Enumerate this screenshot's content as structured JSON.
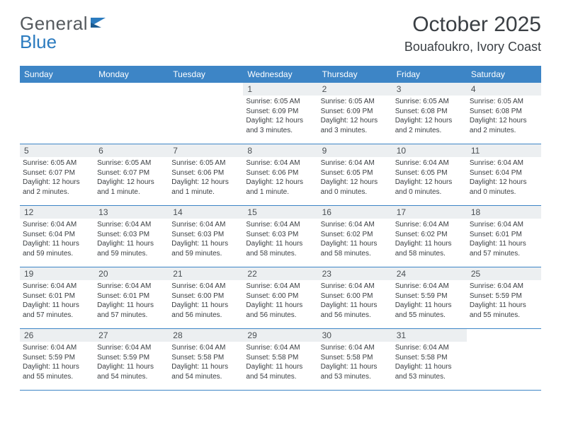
{
  "brand": {
    "word1": "General",
    "word2": "Blue"
  },
  "title": "October 2025",
  "location": "Bouafoukro, Ivory Coast",
  "colors": {
    "header_bg": "#3d85c6",
    "header_fg": "#ffffff",
    "daynum_bg": "#eceff1",
    "rule": "#3d85c6",
    "text": "#3a3e42",
    "brand_gray": "#555a5e",
    "brand_blue": "#2b7bbf"
  },
  "day_labels": [
    "Sunday",
    "Monday",
    "Tuesday",
    "Wednesday",
    "Thursday",
    "Friday",
    "Saturday"
  ],
  "weeks": [
    [
      {
        "n": "",
        "sr": "",
        "ss": "",
        "dl": ""
      },
      {
        "n": "",
        "sr": "",
        "ss": "",
        "dl": ""
      },
      {
        "n": "",
        "sr": "",
        "ss": "",
        "dl": ""
      },
      {
        "n": "1",
        "sr": "Sunrise: 6:05 AM",
        "ss": "Sunset: 6:09 PM",
        "dl": "Daylight: 12 hours and 3 minutes."
      },
      {
        "n": "2",
        "sr": "Sunrise: 6:05 AM",
        "ss": "Sunset: 6:09 PM",
        "dl": "Daylight: 12 hours and 3 minutes."
      },
      {
        "n": "3",
        "sr": "Sunrise: 6:05 AM",
        "ss": "Sunset: 6:08 PM",
        "dl": "Daylight: 12 hours and 2 minutes."
      },
      {
        "n": "4",
        "sr": "Sunrise: 6:05 AM",
        "ss": "Sunset: 6:08 PM",
        "dl": "Daylight: 12 hours and 2 minutes."
      }
    ],
    [
      {
        "n": "5",
        "sr": "Sunrise: 6:05 AM",
        "ss": "Sunset: 6:07 PM",
        "dl": "Daylight: 12 hours and 2 minutes."
      },
      {
        "n": "6",
        "sr": "Sunrise: 6:05 AM",
        "ss": "Sunset: 6:07 PM",
        "dl": "Daylight: 12 hours and 1 minute."
      },
      {
        "n": "7",
        "sr": "Sunrise: 6:05 AM",
        "ss": "Sunset: 6:06 PM",
        "dl": "Daylight: 12 hours and 1 minute."
      },
      {
        "n": "8",
        "sr": "Sunrise: 6:04 AM",
        "ss": "Sunset: 6:06 PM",
        "dl": "Daylight: 12 hours and 1 minute."
      },
      {
        "n": "9",
        "sr": "Sunrise: 6:04 AM",
        "ss": "Sunset: 6:05 PM",
        "dl": "Daylight: 12 hours and 0 minutes."
      },
      {
        "n": "10",
        "sr": "Sunrise: 6:04 AM",
        "ss": "Sunset: 6:05 PM",
        "dl": "Daylight: 12 hours and 0 minutes."
      },
      {
        "n": "11",
        "sr": "Sunrise: 6:04 AM",
        "ss": "Sunset: 6:04 PM",
        "dl": "Daylight: 12 hours and 0 minutes."
      }
    ],
    [
      {
        "n": "12",
        "sr": "Sunrise: 6:04 AM",
        "ss": "Sunset: 6:04 PM",
        "dl": "Daylight: 11 hours and 59 minutes."
      },
      {
        "n": "13",
        "sr": "Sunrise: 6:04 AM",
        "ss": "Sunset: 6:03 PM",
        "dl": "Daylight: 11 hours and 59 minutes."
      },
      {
        "n": "14",
        "sr": "Sunrise: 6:04 AM",
        "ss": "Sunset: 6:03 PM",
        "dl": "Daylight: 11 hours and 59 minutes."
      },
      {
        "n": "15",
        "sr": "Sunrise: 6:04 AM",
        "ss": "Sunset: 6:03 PM",
        "dl": "Daylight: 11 hours and 58 minutes."
      },
      {
        "n": "16",
        "sr": "Sunrise: 6:04 AM",
        "ss": "Sunset: 6:02 PM",
        "dl": "Daylight: 11 hours and 58 minutes."
      },
      {
        "n": "17",
        "sr": "Sunrise: 6:04 AM",
        "ss": "Sunset: 6:02 PM",
        "dl": "Daylight: 11 hours and 58 minutes."
      },
      {
        "n": "18",
        "sr": "Sunrise: 6:04 AM",
        "ss": "Sunset: 6:01 PM",
        "dl": "Daylight: 11 hours and 57 minutes."
      }
    ],
    [
      {
        "n": "19",
        "sr": "Sunrise: 6:04 AM",
        "ss": "Sunset: 6:01 PM",
        "dl": "Daylight: 11 hours and 57 minutes."
      },
      {
        "n": "20",
        "sr": "Sunrise: 6:04 AM",
        "ss": "Sunset: 6:01 PM",
        "dl": "Daylight: 11 hours and 57 minutes."
      },
      {
        "n": "21",
        "sr": "Sunrise: 6:04 AM",
        "ss": "Sunset: 6:00 PM",
        "dl": "Daylight: 11 hours and 56 minutes."
      },
      {
        "n": "22",
        "sr": "Sunrise: 6:04 AM",
        "ss": "Sunset: 6:00 PM",
        "dl": "Daylight: 11 hours and 56 minutes."
      },
      {
        "n": "23",
        "sr": "Sunrise: 6:04 AM",
        "ss": "Sunset: 6:00 PM",
        "dl": "Daylight: 11 hours and 56 minutes."
      },
      {
        "n": "24",
        "sr": "Sunrise: 6:04 AM",
        "ss": "Sunset: 5:59 PM",
        "dl": "Daylight: 11 hours and 55 minutes."
      },
      {
        "n": "25",
        "sr": "Sunrise: 6:04 AM",
        "ss": "Sunset: 5:59 PM",
        "dl": "Daylight: 11 hours and 55 minutes."
      }
    ],
    [
      {
        "n": "26",
        "sr": "Sunrise: 6:04 AM",
        "ss": "Sunset: 5:59 PM",
        "dl": "Daylight: 11 hours and 55 minutes."
      },
      {
        "n": "27",
        "sr": "Sunrise: 6:04 AM",
        "ss": "Sunset: 5:59 PM",
        "dl": "Daylight: 11 hours and 54 minutes."
      },
      {
        "n": "28",
        "sr": "Sunrise: 6:04 AM",
        "ss": "Sunset: 5:58 PM",
        "dl": "Daylight: 11 hours and 54 minutes."
      },
      {
        "n": "29",
        "sr": "Sunrise: 6:04 AM",
        "ss": "Sunset: 5:58 PM",
        "dl": "Daylight: 11 hours and 54 minutes."
      },
      {
        "n": "30",
        "sr": "Sunrise: 6:04 AM",
        "ss": "Sunset: 5:58 PM",
        "dl": "Daylight: 11 hours and 53 minutes."
      },
      {
        "n": "31",
        "sr": "Sunrise: 6:04 AM",
        "ss": "Sunset: 5:58 PM",
        "dl": "Daylight: 11 hours and 53 minutes."
      },
      {
        "n": "",
        "sr": "",
        "ss": "",
        "dl": ""
      }
    ]
  ]
}
